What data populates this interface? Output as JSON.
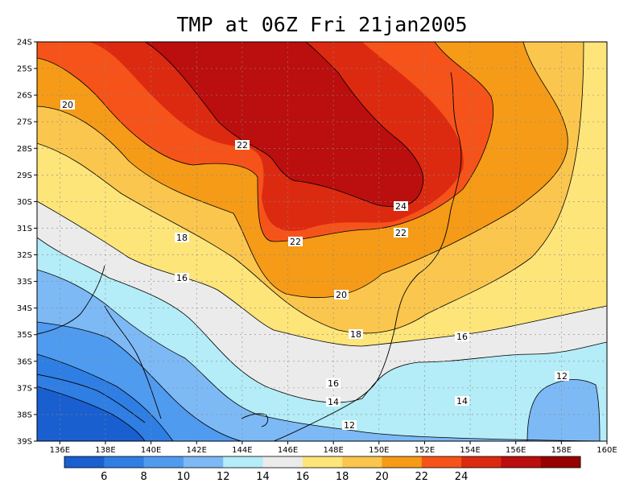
{
  "title": "TMP at 06Z Fri 21jan2005",
  "map": {
    "lon_range": [
      135,
      160
    ],
    "lat_range": [
      -39,
      -24
    ],
    "x_ticks": [
      "136E",
      "138E",
      "140E",
      "142E",
      "144E",
      "146E",
      "148E",
      "150E",
      "152E",
      "154E",
      "156E",
      "158E",
      "160E"
    ],
    "y_ticks": [
      "24S",
      "25S",
      "26S",
      "27S",
      "28S",
      "29S",
      "30S",
      "31S",
      "32S",
      "33S",
      "34S",
      "35S",
      "36S",
      "37S",
      "38S",
      "39S"
    ],
    "grid": "dotted"
  },
  "colorbar": {
    "colors": [
      "#1a5fd0",
      "#2f7ee4",
      "#4f9bf0",
      "#7db9f5",
      "#b4ecf7",
      "#ebebeb",
      "#fde57a",
      "#fbc64e",
      "#f59b17",
      "#f6531a",
      "#dc2a10",
      "#bb0e0e",
      "#960000"
    ],
    "labels": [
      "6",
      "8",
      "10",
      "12",
      "14",
      "16",
      "18",
      "20",
      "22",
      "24"
    ]
  },
  "contour_labels": [
    {
      "text": "20"
    },
    {
      "text": "22"
    },
    {
      "text": "24"
    },
    {
      "text": "22"
    },
    {
      "text": "22"
    },
    {
      "text": "18"
    },
    {
      "text": "16"
    },
    {
      "text": "20"
    },
    {
      "text": "18"
    },
    {
      "text": "16"
    },
    {
      "text": "16"
    },
    {
      "text": "14"
    },
    {
      "text": "14"
    },
    {
      "text": "12"
    },
    {
      "text": "12"
    }
  ]
}
